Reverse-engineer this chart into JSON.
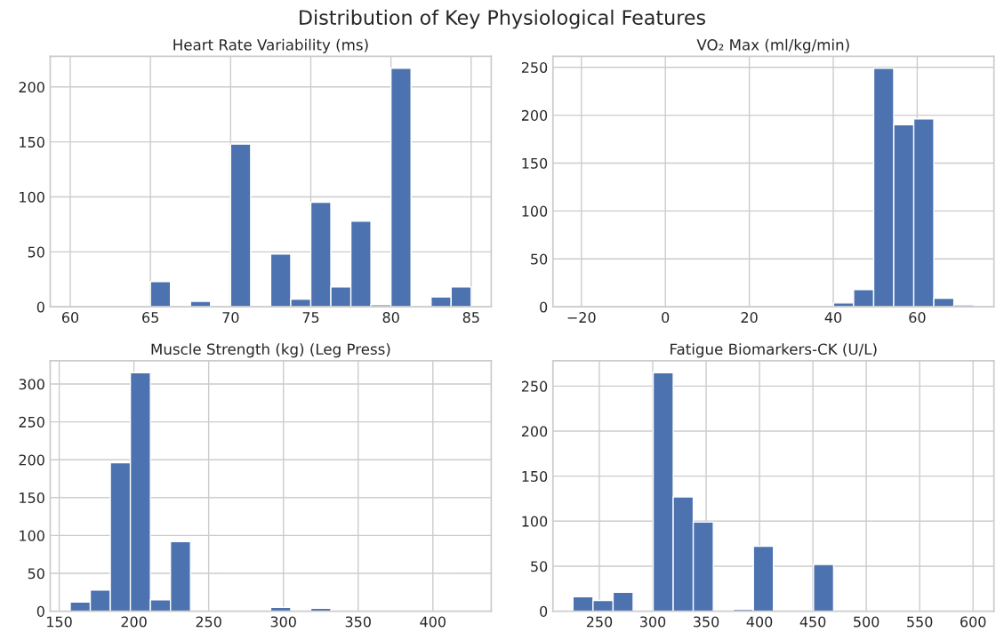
{
  "chart_data": [
    {
      "type": "histogram",
      "title": "Heart Rate Variability (ms)",
      "color": "#4c72b0",
      "grid": true,
      "annotations": [
        "Distribution of Key Physiological Features"
      ],
      "bins": [
        60,
        61.25,
        62.5,
        63.75,
        65,
        66.25,
        67.5,
        68.75,
        70,
        71.25,
        72.5,
        73.75,
        75,
        76.25,
        77.5,
        78.75,
        80,
        81.25,
        82.5,
        83.75,
        85
      ],
      "values": [
        0,
        0,
        0,
        0,
        23,
        0,
        5,
        0,
        148,
        0,
        48,
        7,
        95,
        18,
        78,
        2,
        217,
        0,
        9,
        18
      ],
      "xlim": [
        58.75,
        86.25
      ],
      "xticks": [
        60,
        65,
        70,
        75,
        80,
        85
      ],
      "ylim": [
        0,
        227.85
      ],
      "yticks": [
        0,
        50,
        100,
        150,
        200
      ]
    },
    {
      "type": "histogram",
      "title": "VO₂ Max (ml/kg/min)",
      "color": "#4c72b0",
      "grid": true,
      "bins": [
        -22,
        -17.23,
        -12.45,
        -7.68,
        -2.9,
        1.88,
        6.65,
        11.43,
        16.2,
        20.98,
        25.75,
        30.53,
        35.3,
        40.08,
        44.85,
        49.63,
        54.4,
        59.18,
        63.95,
        68.73,
        73.5
      ],
      "values": [
        0,
        0,
        0,
        0,
        0,
        0,
        0,
        0,
        0,
        0,
        0,
        0,
        0,
        4,
        18,
        249,
        190,
        196,
        9,
        2
      ],
      "xlim": [
        -26.78,
        78.28
      ],
      "xticks": [
        {
          "value": -20,
          "label": "−20"
        },
        0,
        20,
        40,
        60
      ],
      "ylim": [
        0,
        261.45
      ],
      "yticks": [
        0,
        50,
        100,
        150,
        200,
        250
      ]
    },
    {
      "type": "histogram",
      "title": "Muscle Strength (kg) (Leg Press)",
      "color": "#4c72b0",
      "grid": true,
      "bins": [
        157.4,
        170.81,
        184.22,
        197.63,
        211.04,
        224.45,
        237.86,
        251.27,
        264.68,
        278.09,
        291.5,
        304.91,
        318.32,
        331.73,
        345.14,
        358.55,
        371.96,
        385.37,
        398.78,
        412.19,
        425.6
      ],
      "values": [
        12,
        28,
        196,
        315,
        15,
        92,
        0,
        0,
        0,
        0,
        5,
        0,
        4,
        0,
        0,
        0,
        0,
        0,
        0,
        0
      ],
      "xlim": [
        143.99,
        439.01
      ],
      "xticks": [
        150,
        200,
        250,
        300,
        350,
        400
      ],
      "ylim": [
        0,
        330.75
      ],
      "yticks": [
        0,
        50,
        100,
        150,
        200,
        250,
        300
      ]
    },
    {
      "type": "histogram",
      "title": "Fatigue Biomarkers-CK (U/L)",
      "color": "#4c72b0",
      "grid": true,
      "bins": [
        225.3,
        244.08,
        262.85,
        281.63,
        300.4,
        319.18,
        337.95,
        356.73,
        375.5,
        394.28,
        413.05,
        431.83,
        450.6,
        469.38,
        488.15,
        506.93,
        525.7,
        544.48,
        563.25,
        582.03,
        600.8
      ],
      "values": [
        16,
        12,
        21,
        0,
        265,
        127,
        99,
        0,
        2,
        72,
        0,
        0,
        52,
        0,
        0,
        0,
        0,
        0,
        0,
        0
      ],
      "xlim": [
        206.53,
        619.58
      ],
      "xticks": [
        250,
        300,
        350,
        400,
        450,
        500,
        550,
        600
      ],
      "ylim": [
        0,
        278.25
      ],
      "yticks": [
        0,
        50,
        100,
        150,
        200,
        250
      ]
    }
  ]
}
